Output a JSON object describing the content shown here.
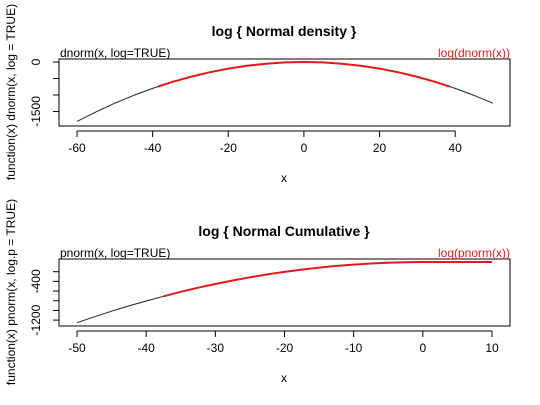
{
  "colors": {
    "primary_curve": "#222222",
    "highlight_curve": "#e41a1c"
  },
  "chart_data": [
    {
      "type": "line",
      "title": "log { Normal density }",
      "xlabel": "x",
      "ylabel": "function(x) dnorm(x, log = TRUE)",
      "legend_left": "dnorm(x, log=TRUE)",
      "legend_right": "log(dnorm(x))",
      "xlim": [
        -60,
        50
      ],
      "ylim": [
        -1850,
        0
      ],
      "x_ticks": [
        -60,
        -40,
        -20,
        0,
        20,
        40
      ],
      "x_tick_labels": [
        "-60",
        "-40",
        "-20",
        "0",
        "20",
        "40"
      ],
      "y_ticks": [
        0,
        -1500
      ],
      "y_tick_labels": [
        "0",
        "-1500"
      ],
      "y_minor_ticks": [
        -500,
        -1000
      ],
      "series": [
        {
          "name": "dnorm(x, log=TRUE)",
          "color": "#222222",
          "x": [
            -60,
            -55,
            -50,
            -45,
            -40,
            -35,
            -30,
            -25,
            -20,
            -15,
            -10,
            -5,
            0,
            5,
            10,
            15,
            20,
            25,
            30,
            35,
            40,
            45,
            50
          ],
          "y": [
            -1800.9,
            -1513.4,
            -1250.9,
            -1013.4,
            -800.9,
            -613.4,
            -450.9,
            -313.4,
            -200.9,
            -113.4,
            -50.9,
            -13.4,
            -0.9,
            -13.4,
            -50.9,
            -113.4,
            -200.9,
            -313.4,
            -450.9,
            -613.4,
            -800.9,
            -1013.4,
            -1250.9
          ]
        },
        {
          "name": "log(dnorm(x))",
          "color": "#e41a1c",
          "x": [
            -38.5,
            -35,
            -30,
            -25,
            -20,
            -15,
            -10,
            -5,
            0,
            5,
            10,
            15,
            20,
            25,
            30,
            35,
            38.5
          ],
          "y": [
            -742.0,
            -613.4,
            -450.9,
            -313.4,
            -200.9,
            -113.4,
            -50.9,
            -13.4,
            -0.9,
            -13.4,
            -50.9,
            -113.4,
            -200.9,
            -313.4,
            -450.9,
            -613.4,
            -742.0
          ]
        }
      ]
    },
    {
      "type": "line",
      "title": "log { Normal Cumulative }",
      "xlabel": "x",
      "ylabel": "function(x) pnorm(x, log.p = TRUE)",
      "legend_left": "pnorm(x, log=TRUE)",
      "legend_right": "log(pnorm(x))",
      "xlim": [
        -50,
        10
      ],
      "ylim": [
        -1260,
        0
      ],
      "x_ticks": [
        -50,
        -40,
        -30,
        -20,
        -10,
        0,
        10
      ],
      "x_tick_labels": [
        "-50",
        "-40",
        "-30",
        "-20",
        "-10",
        "0",
        "10"
      ],
      "y_ticks": [
        -400,
        -1200
      ],
      "y_tick_labels": [
        "-400",
        "-1200"
      ],
      "y_minor_ticks": [
        -200,
        -600,
        -800,
        -1000
      ],
      "series": [
        {
          "name": "pnorm(x, log=TRUE)",
          "color": "#222222",
          "x": [
            -50,
            -47.5,
            -45,
            -42.5,
            -40,
            -37.5,
            -35,
            -32.5,
            -30,
            -27.5,
            -25,
            -22.5,
            -20,
            -17.5,
            -15,
            -12.5,
            -10,
            -7.5,
            -5,
            -2.5,
            0,
            2.5,
            5,
            7.5,
            10
          ],
          "y": [
            -1254.8,
            -1132.8,
            -1016.7,
            -906.8,
            -804.6,
            -707.7,
            -616.4,
            -530.4,
            -454.3,
            -382.2,
            -315.4,
            -256.1,
            -203.9,
            -157.0,
            -116.0,
            -80.8,
            -53.2,
            -31.0,
            -15.1,
            -5.0,
            -0.7,
            -0.006,
            0,
            0,
            0
          ]
        },
        {
          "name": "log(pnorm(x))",
          "color": "#e41a1c",
          "x": [
            -37.5,
            -35,
            -32.5,
            -30,
            -27.5,
            -25,
            -22.5,
            -20,
            -17.5,
            -15,
            -12.5,
            -10,
            -7.5,
            -5,
            -2.5,
            0,
            2.5,
            5,
            7.5,
            10
          ],
          "y": [
            -707.7,
            -616.4,
            -530.4,
            -454.3,
            -382.2,
            -315.4,
            -256.1,
            -203.9,
            -157.0,
            -116.0,
            -80.8,
            -53.2,
            -31.0,
            -15.1,
            -5.0,
            -0.7,
            -0.006,
            0,
            0,
            0
          ]
        }
      ]
    }
  ]
}
